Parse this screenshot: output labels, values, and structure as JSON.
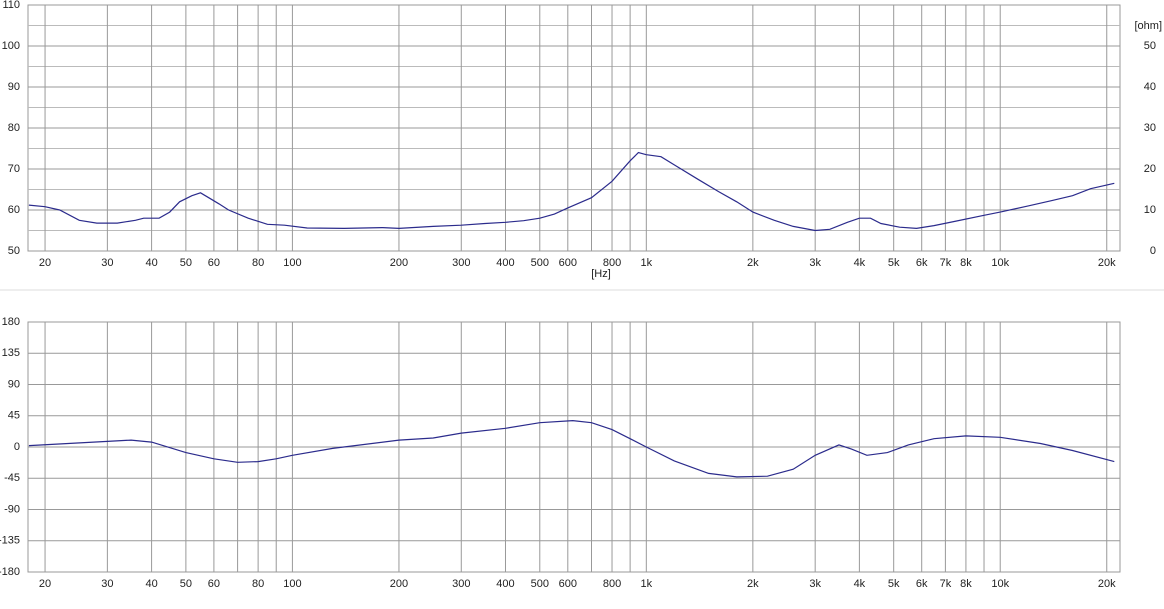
{
  "chart_data": [
    {
      "type": "line",
      "log_x": true,
      "xlim": [
        17.9,
        21800
      ],
      "ylim": [
        50,
        110
      ],
      "grid": true,
      "xlabel": "[Hz]",
      "xticks": [
        20,
        30,
        40,
        50,
        60,
        80,
        100,
        200,
        300,
        400,
        500,
        600,
        800,
        {
          "value": 1000,
          "label": "1k"
        },
        {
          "value": 2000,
          "label": "2k"
        },
        {
          "value": 3000,
          "label": "3k"
        },
        {
          "value": 4000,
          "label": "4k"
        },
        {
          "value": 5000,
          "label": "5k"
        },
        {
          "value": 6000,
          "label": "6k"
        },
        {
          "value": 7000,
          "label": "7k"
        },
        {
          "value": 8000,
          "label": "8k"
        },
        {
          "value": 10000,
          "label": "10k"
        },
        {
          "value": 20000,
          "label": "20k"
        }
      ],
      "xminor": [
        70,
        90,
        700,
        900,
        9000
      ],
      "yticks": [
        50,
        60,
        70,
        80,
        90,
        100,
        110
      ],
      "yminor": [
        55,
        65,
        75,
        85,
        95,
        105
      ],
      "y2label": "[ohm]",
      "y2lim": [
        0,
        60
      ],
      "y2ticks": [
        0,
        10,
        20,
        30,
        40,
        50
      ],
      "series": [
        {
          "color": "#2b2b8c",
          "x": [
            18,
            20,
            22,
            25,
            28,
            32,
            36,
            38,
            42,
            45,
            48,
            52,
            55,
            58,
            62,
            66,
            75,
            85,
            95,
            110,
            140,
            180,
            200,
            250,
            300,
            350,
            400,
            450,
            500,
            550,
            600,
            700,
            800,
            900,
            950,
            1000,
            1100,
            1200,
            1400,
            1600,
            1800,
            2000,
            2300,
            2600,
            3000,
            3300,
            3700,
            4000,
            4300,
            4600,
            5200,
            5800,
            6500,
            7500,
            9000,
            10000,
            12000,
            14000,
            16000,
            18000,
            21000
          ],
          "values": [
            61.2,
            60.8,
            60,
            57.5,
            56.8,
            56.8,
            57.5,
            58,
            58,
            59.5,
            62,
            63.5,
            64.2,
            63,
            61.5,
            60,
            58,
            56.5,
            56.3,
            55.6,
            55.5,
            55.7,
            55.5,
            56,
            56.3,
            56.7,
            57,
            57.4,
            58,
            59,
            60.5,
            63,
            67,
            72,
            74,
            73.5,
            73,
            71,
            67.5,
            64.5,
            62,
            59.5,
            57.5,
            56,
            55,
            55.3,
            57,
            58,
            58,
            56.7,
            55.8,
            55.5,
            56.2,
            57.3,
            58.7,
            59.5,
            61,
            62.3,
            63.5,
            65.2,
            66.5
          ]
        }
      ]
    },
    {
      "type": "line",
      "log_x": true,
      "xlim": [
        17.9,
        21800
      ],
      "ylim": [
        -180,
        180
      ],
      "grid": true,
      "xticks": [
        20,
        30,
        40,
        50,
        60,
        80,
        100,
        200,
        300,
        400,
        500,
        600,
        800,
        {
          "value": 1000,
          "label": "1k"
        },
        {
          "value": 2000,
          "label": "2k"
        },
        {
          "value": 3000,
          "label": "3k"
        },
        {
          "value": 4000,
          "label": "4k"
        },
        {
          "value": 5000,
          "label": "5k"
        },
        {
          "value": 6000,
          "label": "6k"
        },
        {
          "value": 7000,
          "label": "7k"
        },
        {
          "value": 8000,
          "label": "8k"
        },
        {
          "value": 10000,
          "label": "10k"
        },
        {
          "value": 20000,
          "label": "20k"
        }
      ],
      "xminor": [
        70,
        90,
        700,
        900,
        9000
      ],
      "yticks": [
        -180,
        -135,
        -90,
        -45,
        0,
        45,
        90,
        135,
        180
      ],
      "series": [
        {
          "color": "#2b2b8c",
          "x": [
            18,
            30,
            35,
            40,
            50,
            60,
            70,
            80,
            90,
            100,
            130,
            200,
            250,
            300,
            400,
            500,
            620,
            700,
            800,
            900,
            1000,
            1200,
            1500,
            1800,
            2200,
            2600,
            3000,
            3500,
            3800,
            4200,
            4800,
            5500,
            6500,
            8000,
            10000,
            13000,
            16000,
            21000
          ],
          "values": [
            2,
            8,
            10,
            7,
            -8,
            -17,
            -22,
            -21,
            -17,
            -12,
            -2,
            10,
            13,
            20,
            27,
            35,
            38,
            35,
            25,
            12,
            0,
            -20,
            -38,
            -43,
            -42,
            -32,
            -12,
            3,
            -3,
            -12,
            -8,
            3,
            12,
            16,
            14,
            5,
            -5,
            -21
          ]
        }
      ]
    }
  ]
}
